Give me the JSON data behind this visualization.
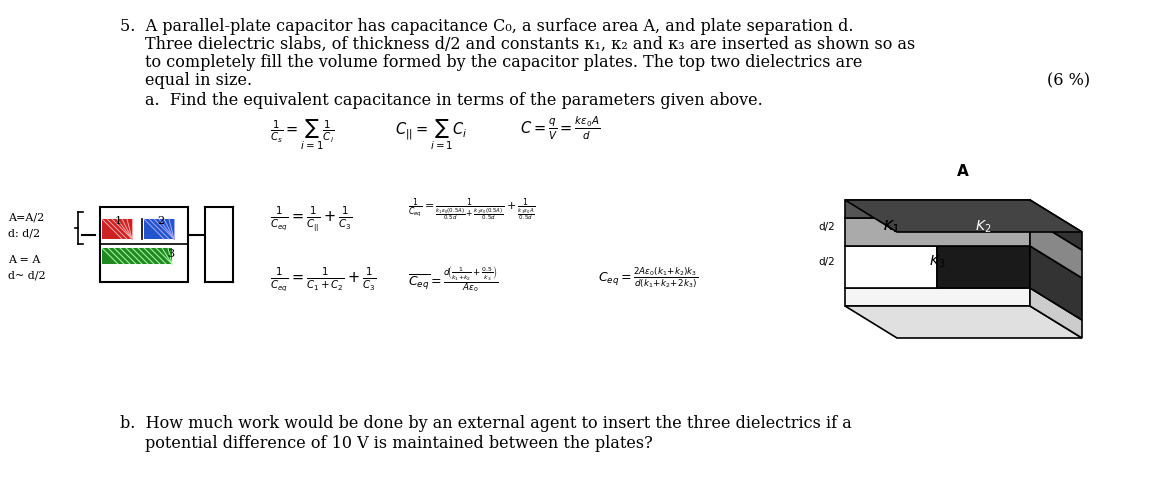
{
  "bg_color": "#ffffff",
  "title_text": "5.  A parallel-plate capacitor has capacitance C₀, a surface area A, and plate separation d.",
  "line2": "Three dielectric slabs, of thickness d/2 and constants κ₁, κ₂ and κ₃ are inserted as shown so as",
  "line3": "to completely fill the volume formed by the capacitor plates. The top two dielectrics are",
  "line4": "equal in size.",
  "line4b": "(6 %)",
  "line5": "a.  Find the equivalent capacitance in terms of the parameters given above.",
  "line_b": "b.  How much work would be done by an external agent to insert the three dielectrics if a",
  "line_b2": "potential difference of 10 V is maintained between the plates?",
  "fig_width": 11.65,
  "fig_height": 4.94,
  "dpi": 100
}
